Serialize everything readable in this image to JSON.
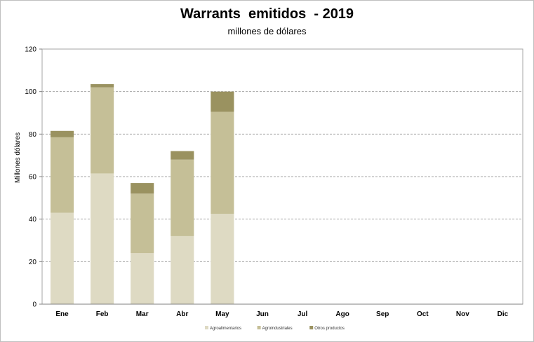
{
  "chart_data": {
    "type": "bar",
    "stacked": true,
    "title": "Warrants  emitidos  - 2019",
    "subtitle": "millones de dólares",
    "xlabel": "",
    "ylabel": "Millones dólares",
    "ylim": [
      0,
      120
    ],
    "yticks": [
      0,
      20,
      40,
      60,
      80,
      100,
      120
    ],
    "grid": true,
    "legend_position": "bottom",
    "categories": [
      "Ene",
      "Feb",
      "Mar",
      "Abr",
      "May",
      "Jun",
      "Jul",
      "Ago",
      "Sep",
      "Oct",
      "Nov",
      "Dic"
    ],
    "series": [
      {
        "name": "Agroalimentarios",
        "color": "#dedac3",
        "values": [
          43,
          61.5,
          24,
          32,
          42.5,
          null,
          null,
          null,
          null,
          null,
          null,
          null
        ]
      },
      {
        "name": "Agroindustriales",
        "color": "#c5bf97",
        "values": [
          35.5,
          40.5,
          28,
          36,
          48,
          null,
          null,
          null,
          null,
          null,
          null,
          null
        ]
      },
      {
        "name": "Otros productos",
        "color": "#9a9260",
        "values": [
          3,
          1.5,
          5,
          4,
          9.5,
          null,
          null,
          null,
          null,
          null,
          null,
          null
        ]
      }
    ]
  }
}
